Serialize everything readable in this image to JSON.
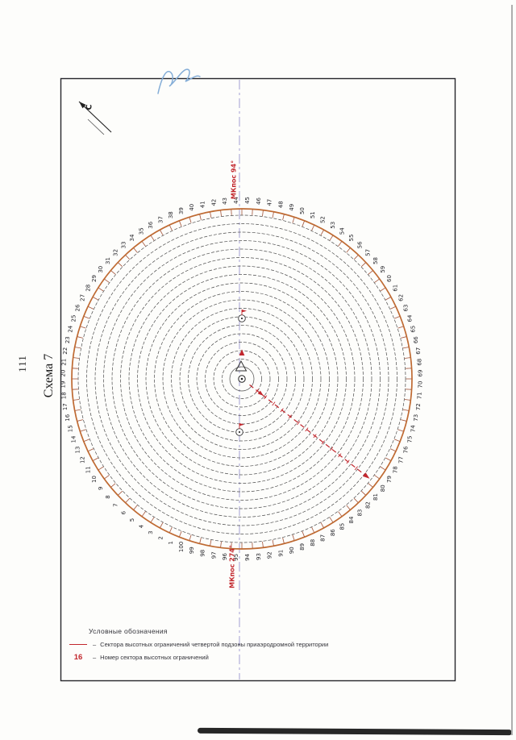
{
  "page": {
    "number": "111",
    "title": "Схема 7"
  },
  "diagram": {
    "north_label": "С",
    "course_labels": {
      "top": "МКпос 94°",
      "bottom": "МКпос 274°"
    },
    "rings_count": 18,
    "sectors_total": 100,
    "sector_numbers": [
      1,
      2,
      3,
      4,
      5,
      6,
      7,
      8,
      9,
      10,
      11,
      12,
      13,
      14,
      15,
      16,
      17,
      18,
      19,
      20,
      21,
      22,
      23,
      24,
      25,
      26,
      27,
      28,
      29,
      30,
      31,
      32,
      33,
      34,
      35,
      36,
      37,
      38,
      39,
      40,
      41,
      42,
      43,
      44,
      45,
      46,
      47,
      48,
      49,
      50,
      51,
      52,
      53,
      54,
      55,
      56,
      57,
      58,
      59,
      60,
      61,
      62,
      63,
      64,
      65,
      66,
      67,
      68,
      69,
      70,
      71,
      72,
      73,
      74,
      75,
      76,
      77,
      78,
      79,
      80,
      81,
      82,
      83,
      84,
      85,
      86,
      87,
      88,
      89,
      90,
      91,
      92,
      93,
      94,
      95,
      96,
      97,
      98,
      99,
      100
    ],
    "colors": {
      "red": "#c2272d",
      "orange": "#bf6a32",
      "axis": "#9b95cf",
      "ink": "#2f2f2f",
      "handwriting": "#84add7"
    }
  },
  "legend": {
    "title": "Условные обозначения",
    "dash": "–",
    "items": [
      {
        "symbol": "red-line",
        "text": "Сектора высотных ограничений четвертой подзоны приаэродромной территории"
      },
      {
        "symbol": "red-number",
        "sample": "16",
        "text": "Номер сектора высотных ограничений"
      }
    ]
  }
}
